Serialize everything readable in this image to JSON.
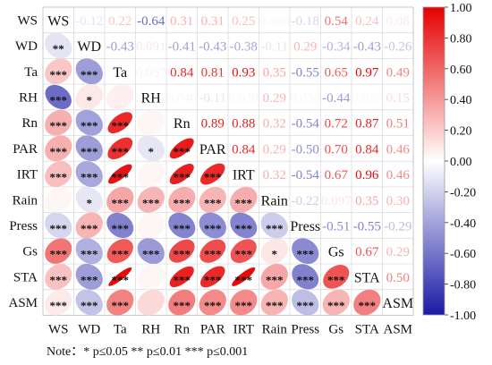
{
  "chart_data": {
    "type": "heatmap",
    "variables": [
      "WS",
      "WD",
      "Ta",
      "RH",
      "Rn",
      "PAR",
      "IRT",
      "Rain",
      "Press",
      "Gs",
      "STA",
      "ASM"
    ],
    "upper_coefficients": [
      [
        null,
        "-0.12",
        "0.22",
        "-0.64",
        "0.31",
        "0.31",
        "0.25",
        "0.040",
        "-0.18",
        "0.54",
        "0.24",
        "0.08"
      ],
      [
        null,
        null,
        "-0.43",
        "0.091",
        "-0.41",
        "-0.43",
        "-0.38",
        "-0.11",
        "0.29",
        "-0.34",
        "-0.43",
        "-0.26"
      ],
      [
        null,
        null,
        null,
        "0.057",
        "0.84",
        "0.81",
        "0.93",
        "0.35",
        "-0.55",
        "0.65",
        "0.97",
        "0.49"
      ],
      [
        null,
        null,
        null,
        null,
        "0.040",
        "-0.11",
        "0.038",
        "0.29",
        "0.038",
        "-0.44",
        "0.038",
        "0.15"
      ],
      [
        null,
        null,
        null,
        null,
        null,
        "0.89",
        "0.88",
        "0.32",
        "-0.54",
        "0.72",
        "0.87",
        "0.51"
      ],
      [
        null,
        null,
        null,
        null,
        null,
        null,
        "0.84",
        "0.29",
        "-0.50",
        "0.70",
        "0.84",
        "0.46"
      ],
      [
        null,
        null,
        null,
        null,
        null,
        null,
        null,
        "0.32",
        "-0.54",
        "0.67",
        "0.96",
        "0.46"
      ],
      [
        null,
        null,
        null,
        null,
        null,
        null,
        null,
        null,
        "-0.22",
        "0.097",
        "0.35",
        "0.30"
      ],
      [
        null,
        null,
        null,
        null,
        null,
        null,
        null,
        null,
        null,
        "-0.51",
        "-0.55",
        "-0.29"
      ],
      [
        null,
        null,
        null,
        null,
        null,
        null,
        null,
        null,
        null,
        null,
        "0.67",
        "0.29"
      ],
      [
        null,
        null,
        null,
        null,
        null,
        null,
        null,
        null,
        null,
        null,
        null,
        "0.50"
      ],
      [
        null,
        null,
        null,
        null,
        null,
        null,
        null,
        null,
        null,
        null,
        null,
        null
      ]
    ],
    "lower_significance": [
      [],
      [
        "**"
      ],
      [
        "***",
        "***"
      ],
      [
        "***",
        "*",
        ""
      ],
      [
        "***",
        "***",
        "***",
        ""
      ],
      [
        "***",
        "***",
        "***",
        "*",
        "***"
      ],
      [
        "***",
        "***",
        "***",
        "",
        "***",
        "***"
      ],
      [
        "",
        "*",
        "***",
        "***",
        "***",
        "***",
        "***"
      ],
      [
        "***",
        "***",
        "***",
        "",
        "***",
        "***",
        "***",
        "***"
      ],
      [
        "***",
        "***",
        "***",
        "***",
        "***",
        "***",
        "***",
        "*",
        "***"
      ],
      [
        "***",
        "***",
        "***",
        "",
        "***",
        "***",
        "***",
        "***",
        "***",
        "***"
      ],
      [
        "***",
        "***",
        "***",
        "",
        "***",
        "***",
        "***",
        "***",
        "***",
        "***",
        "***"
      ]
    ],
    "legend": {
      "ticks": [
        "1.00",
        "0.80",
        "0.60",
        "0.40",
        "0.20",
        "0.00",
        "-0.20",
        "-0.40",
        "-0.60",
        "-0.80",
        "-1.00"
      ],
      "placement": "right",
      "range": [
        -1,
        1
      ],
      "colors": {
        "negative": "#1a1aa6",
        "neutral": "#ffffff",
        "positive": "#e60000"
      }
    }
  },
  "note": "Note：* p≤0.05  ** p≤0.01  *** p≤0.001"
}
